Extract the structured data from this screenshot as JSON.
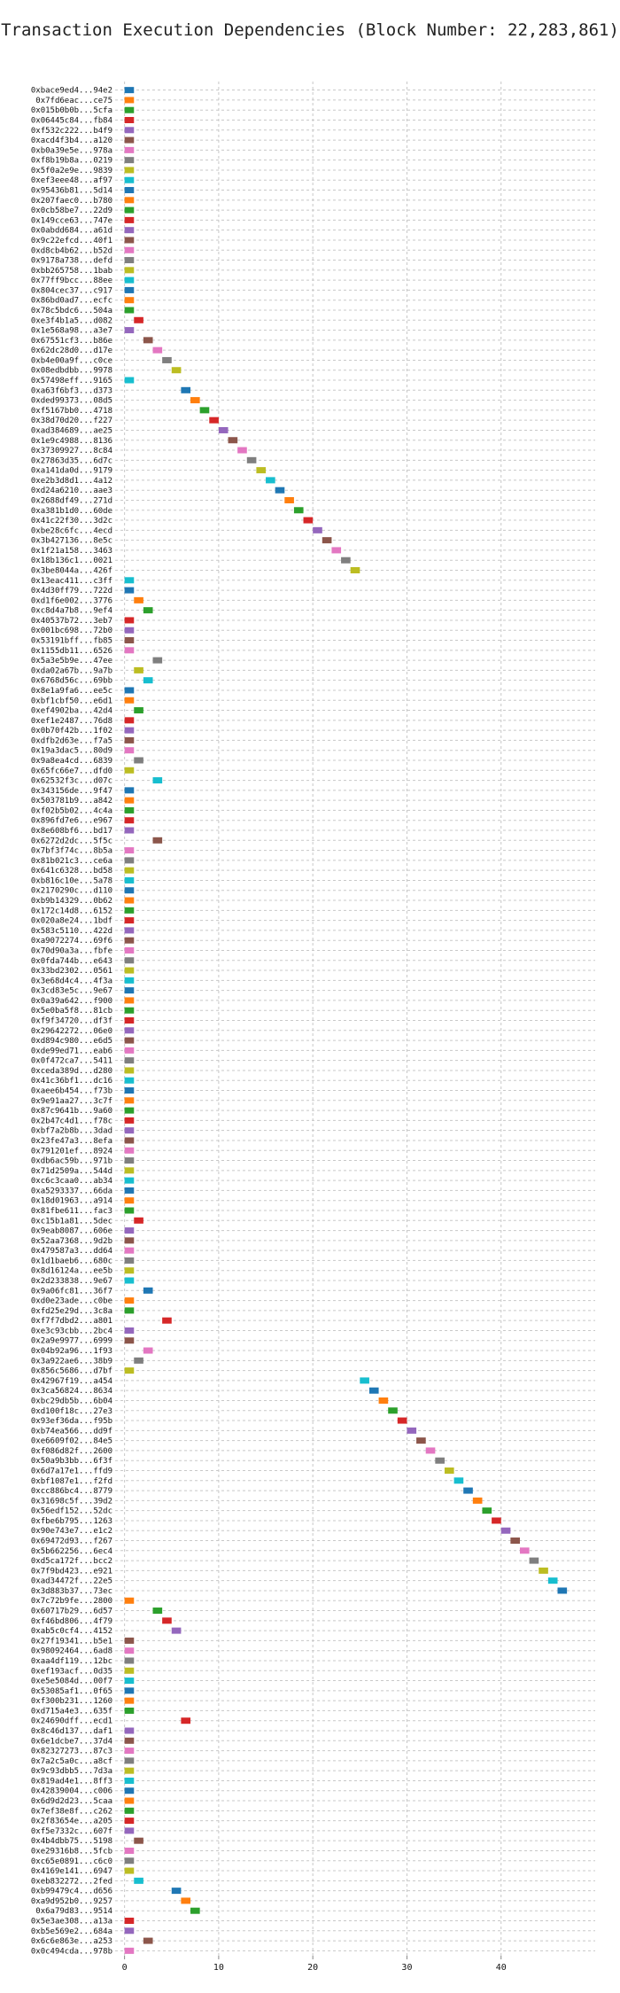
{
  "chart_data": {
    "type": "bar",
    "orientation": "horizontal",
    "title": "Transaction Execution Dependencies (Block Number: 22,283,861)",
    "xlabel": "",
    "ylabel": "",
    "xlim": [
      -1,
      50
    ],
    "xticks": [
      0,
      10,
      20,
      30,
      40
    ],
    "grid": true,
    "bar_width": 1,
    "palette": [
      "#1f77b4",
      "#ff7f0e",
      "#2ca02c",
      "#d62728",
      "#9467bd",
      "#8c564b",
      "#e377c2",
      "#7f7f7f",
      "#bcbd22",
      "#17becf"
    ],
    "transactions": [
      {
        "label": "0xbace9ed4...94e2",
        "start": 0
      },
      {
        "label": "0x7fd6eac...ce75",
        "start": 0
      },
      {
        "label": "0x015b0b0b...5cfa",
        "start": 0
      },
      {
        "label": "0x06445c84...fb84",
        "start": 0
      },
      {
        "label": "0xf532c222...b4f9",
        "start": 0
      },
      {
        "label": "0xacd4f3b4...a120",
        "start": 0
      },
      {
        "label": "0xb0a39e5e...978a",
        "start": 0
      },
      {
        "label": "0xf8b19b8a...0219",
        "start": 0
      },
      {
        "label": "0x5f0a2e9e...9839",
        "start": 0
      },
      {
        "label": "0xef3eee48...af97",
        "start": 0
      },
      {
        "label": "0x95436b81...5d14",
        "start": 0
      },
      {
        "label": "0x207faec0...b780",
        "start": 0
      },
      {
        "label": "0x0cb58be7...22d9",
        "start": 0
      },
      {
        "label": "0x149cce63...747e",
        "start": 0
      },
      {
        "label": "0x0abdd684...a61d",
        "start": 0
      },
      {
        "label": "0x9c22efcd...40f1",
        "start": 0
      },
      {
        "label": "0xd8cb4b62...b52d",
        "start": 0
      },
      {
        "label": "0x9178a738...defd",
        "start": 0
      },
      {
        "label": "0xbb265758...1bab",
        "start": 0
      },
      {
        "label": "0x77ff9bcc...88ee",
        "start": 0
      },
      {
        "label": "0x804cec37...c917",
        "start": 0
      },
      {
        "label": "0x86bd0ad7...ecfc",
        "start": 0
      },
      {
        "label": "0x78c5bdc6...504a",
        "start": 0
      },
      {
        "label": "0xe3f4b1a5...d082",
        "start": 1
      },
      {
        "label": "0x1e568a98...a3e7",
        "start": 0
      },
      {
        "label": "0x67551cf3...b86e",
        "start": 2
      },
      {
        "label": "0x62dc28d0...d17e",
        "start": 3
      },
      {
        "label": "0xb4e00a9f...c0ce",
        "start": 4
      },
      {
        "label": "0x08edbdbb...9978",
        "start": 5
      },
      {
        "label": "0x57498eff...9165",
        "start": 0
      },
      {
        "label": "0xa63f6bf3...d373",
        "start": 6
      },
      {
        "label": "0xded99373...08d5",
        "start": 7
      },
      {
        "label": "0xf5167bb0...4718",
        "start": 8
      },
      {
        "label": "0x38d70d20...f227",
        "start": 9
      },
      {
        "label": "0xad384689...ae25",
        "start": 10
      },
      {
        "label": "0x1e9c4988...8136",
        "start": 11
      },
      {
        "label": "0x37309927...8c84",
        "start": 12
      },
      {
        "label": "0x27863d35...6d7c",
        "start": 13
      },
      {
        "label": "0xa141da0d...9179",
        "start": 14
      },
      {
        "label": "0xe2b3d8d1...4a12",
        "start": 15
      },
      {
        "label": "0xd24a6210...aae3",
        "start": 16
      },
      {
        "label": "0x2688df49...271d",
        "start": 17
      },
      {
        "label": "0xa381b1d0...60de",
        "start": 18
      },
      {
        "label": "0x41c22f30...3d2c",
        "start": 19
      },
      {
        "label": "0xbe28c6fc...4ecd",
        "start": 20
      },
      {
        "label": "0x3b427136...8e5c",
        "start": 21
      },
      {
        "label": "0x1f21a158...3463",
        "start": 22
      },
      {
        "label": "0x18b136c1...0021",
        "start": 23
      },
      {
        "label": "0x3be8044a...426f",
        "start": 24
      },
      {
        "label": "0x13eac411...c3ff",
        "start": 0
      },
      {
        "label": "0x4d30ff79...722d",
        "start": 0
      },
      {
        "label": "0xd1f6e002...3776",
        "start": 1
      },
      {
        "label": "0xc8d4a7b8...9ef4",
        "start": 2
      },
      {
        "label": "0x40537b72...3eb7",
        "start": 0
      },
      {
        "label": "0x001bc698...72b0",
        "start": 0
      },
      {
        "label": "0x53191bff...fb85",
        "start": 0
      },
      {
        "label": "0x1155db11...6526",
        "start": 0
      },
      {
        "label": "0x5a3e5b9e...47ee",
        "start": 3
      },
      {
        "label": "0xda02a67b...9a7b",
        "start": 1
      },
      {
        "label": "0x6768d56c...69bb",
        "start": 2
      },
      {
        "label": "0x8e1a9fa6...ee5c",
        "start": 0
      },
      {
        "label": "0xbf1cbf50...e6d1",
        "start": 0
      },
      {
        "label": "0xef4902ba...42d4",
        "start": 1
      },
      {
        "label": "0xef1e2487...76d8",
        "start": 0
      },
      {
        "label": "0x0b70f42b...1f02",
        "start": 0
      },
      {
        "label": "0xdfb2d63e...f7a5",
        "start": 0
      },
      {
        "label": "0x19a3dac5...80d9",
        "start": 0
      },
      {
        "label": "0x9a8ea4cd...6839",
        "start": 1
      },
      {
        "label": "0x65fc66e7...dfd0",
        "start": 0
      },
      {
        "label": "0x62532f3c...d07c",
        "start": 3
      },
      {
        "label": "0x343156de...9f47",
        "start": 0
      },
      {
        "label": "0x503781b9...a842",
        "start": 0
      },
      {
        "label": "0xf02b5b02...4c4a",
        "start": 0
      },
      {
        "label": "0x896fd7e6...e967",
        "start": 0
      },
      {
        "label": "0x8e608bf6...bd17",
        "start": 0
      },
      {
        "label": "0x6272d2dc...5f5c",
        "start": 3
      },
      {
        "label": "0x7bf3f74c...8b5a",
        "start": 0
      },
      {
        "label": "0x81b021c3...ce6a",
        "start": 0
      },
      {
        "label": "0x641c6328...bd58",
        "start": 0
      },
      {
        "label": "0xb816c10e...5a78",
        "start": 0
      },
      {
        "label": "0x2170290c...d110",
        "start": 0
      },
      {
        "label": "0xb9b14329...0b62",
        "start": 0
      },
      {
        "label": "0x172c14d8...6152",
        "start": 0
      },
      {
        "label": "0x020a8e24...1bdf",
        "start": 0
      },
      {
        "label": "0x583c5110...422d",
        "start": 0
      },
      {
        "label": "0xa9072274...69f6",
        "start": 0
      },
      {
        "label": "0x70d90a3a...fbfe",
        "start": 0
      },
      {
        "label": "0x0fda744b...e643",
        "start": 0
      },
      {
        "label": "0x33bd2302...0561",
        "start": 0
      },
      {
        "label": "0x3e68d4c4...4f3a",
        "start": 0
      },
      {
        "label": "0x3cd83e5c...9e67",
        "start": 0
      },
      {
        "label": "0x0a39a642...f900",
        "start": 0
      },
      {
        "label": "0x5e0ba5f8...81cb",
        "start": 0
      },
      {
        "label": "0xf9f34720...df3f",
        "start": 0
      },
      {
        "label": "0x29642272...06e0",
        "start": 0
      },
      {
        "label": "0xd894c980...e6d5",
        "start": 0
      },
      {
        "label": "0xde99ed71...eab6",
        "start": 0
      },
      {
        "label": "0x0f472ca7...5411",
        "start": 0
      },
      {
        "label": "0xceda389d...d280",
        "start": 0
      },
      {
        "label": "0x41c36bf1...dc16",
        "start": 0
      },
      {
        "label": "0xaee6b454...f73b",
        "start": 0
      },
      {
        "label": "0x9e91aa27...3c7f",
        "start": 0
      },
      {
        "label": "0x87c9641b...9a60",
        "start": 0
      },
      {
        "label": "0x2b47c4d1...f78c",
        "start": 0
      },
      {
        "label": "0xbf7a2b8b...3dad",
        "start": 0
      },
      {
        "label": "0x23fe47a3...8efa",
        "start": 0
      },
      {
        "label": "0x791201ef...8924",
        "start": 0
      },
      {
        "label": "0xdb6ac59b...971b",
        "start": 0
      },
      {
        "label": "0x71d2509a...544d",
        "start": 0
      },
      {
        "label": "0xc6c3caa0...ab34",
        "start": 0
      },
      {
        "label": "0xa5293337...66da",
        "start": 0
      },
      {
        "label": "0x18d01963...a914",
        "start": 0
      },
      {
        "label": "0x81fbe611...fac3",
        "start": 0
      },
      {
        "label": "0xc15b1a81...5dec",
        "start": 1
      },
      {
        "label": "0x9eab8087...606e",
        "start": 0
      },
      {
        "label": "0x52aa7368...9d2b",
        "start": 0
      },
      {
        "label": "0x479587a3...dd64",
        "start": 0
      },
      {
        "label": "0x1d1baeb6...680c",
        "start": 0
      },
      {
        "label": "0x8d16124a...ee5b",
        "start": 0
      },
      {
        "label": "0x2d233838...9e67",
        "start": 0
      },
      {
        "label": "0x9a06fc81...36f7",
        "start": 2
      },
      {
        "label": "0xd0e23ade...c0be",
        "start": 0
      },
      {
        "label": "0xfd25e29d...3c8a",
        "start": 0
      },
      {
        "label": "0xf7f7dbd2...a801",
        "start": 4
      },
      {
        "label": "0xe3c93cbb...2bc4",
        "start": 0
      },
      {
        "label": "0x2a9e9977...6999",
        "start": 0
      },
      {
        "label": "0x04b92a96...1f93",
        "start": 2
      },
      {
        "label": "0x3a922ae6...38b9",
        "start": 1
      },
      {
        "label": "0x856c5686...d7bf",
        "start": 0
      },
      {
        "label": "0x42967f19...a454",
        "start": 25
      },
      {
        "label": "0x3ca56824...8634",
        "start": 26
      },
      {
        "label": "0xbc29db5b...6b04",
        "start": 27
      },
      {
        "label": "0xd100f18c...27e3",
        "start": 28
      },
      {
        "label": "0x93ef36da...f95b",
        "start": 29
      },
      {
        "label": "0xb74ea566...dd9f",
        "start": 30
      },
      {
        "label": "0xe6609f02...84e5",
        "start": 31
      },
      {
        "label": "0xf086d82f...2600",
        "start": 32
      },
      {
        "label": "0x50a9b3bb...6f3f",
        "start": 33
      },
      {
        "label": "0x6d7a17e1...ffd9",
        "start": 34
      },
      {
        "label": "0xbf1087e1...f2fd",
        "start": 35
      },
      {
        "label": "0xcc886bc4...8779",
        "start": 36
      },
      {
        "label": "0x31698c5f...39d2",
        "start": 37
      },
      {
        "label": "0x56edf152...52dc",
        "start": 38
      },
      {
        "label": "0xfbe6b795...1263",
        "start": 39
      },
      {
        "label": "0x90e743e7...e1c2",
        "start": 40
      },
      {
        "label": "0x69472d93...f267",
        "start": 41
      },
      {
        "label": "0x5b662256...6ec4",
        "start": 42
      },
      {
        "label": "0xd5ca172f...bcc2",
        "start": 43
      },
      {
        "label": "0x7f9bd423...e921",
        "start": 44
      },
      {
        "label": "0xad34472f...22e5",
        "start": 45
      },
      {
        "label": "0x3d883b37...73ec",
        "start": 46
      },
      {
        "label": "0x7c72b9fe...2800",
        "start": 0
      },
      {
        "label": "0x60717b29...6d57",
        "start": 3
      },
      {
        "label": "0xf46bd806...4f79",
        "start": 4
      },
      {
        "label": "0xab5c0cf4...4152",
        "start": 5
      },
      {
        "label": "0x27f19341...b5e1",
        "start": 0
      },
      {
        "label": "0x98092464...6ad8",
        "start": 0
      },
      {
        "label": "0xaa4df119...12bc",
        "start": 0
      },
      {
        "label": "0xef193acf...0d35",
        "start": 0
      },
      {
        "label": "0xe5e5084d...00f7",
        "start": 0
      },
      {
        "label": "0x53085af1...0f65",
        "start": 0
      },
      {
        "label": "0xf300b231...1260",
        "start": 0
      },
      {
        "label": "0xd715a4e3...635f",
        "start": 0
      },
      {
        "label": "0x24690dff...ecd1",
        "start": 6
      },
      {
        "label": "0x8c46d137...daf1",
        "start": 0
      },
      {
        "label": "0x6e1dcbe7...37d4",
        "start": 0
      },
      {
        "label": "0x82327273...87c3",
        "start": 0
      },
      {
        "label": "0x7a2c5a0c...a8cf",
        "start": 0
      },
      {
        "label": "0x9c93dbb5...7d3a",
        "start": 0
      },
      {
        "label": "0x819ad4e1...8ff3",
        "start": 0
      },
      {
        "label": "0x42839004...c006",
        "start": 0
      },
      {
        "label": "0x6d9d2d23...5caa",
        "start": 0
      },
      {
        "label": "0x7ef38e8f...c262",
        "start": 0
      },
      {
        "label": "0x2f83654e...a205",
        "start": 0
      },
      {
        "label": "0xf5e7332c...607f",
        "start": 0
      },
      {
        "label": "0x4b4dbb75...5198",
        "start": 1
      },
      {
        "label": "0xe29316b8...5fcb",
        "start": 0
      },
      {
        "label": "0xc65e0891...c6c0",
        "start": 0
      },
      {
        "label": "0x4169e141...6947",
        "start": 0
      },
      {
        "label": "0xeb832272...2fed",
        "start": 1
      },
      {
        "label": "0xb99479c4...d656",
        "start": 5
      },
      {
        "label": "0xa9d952b0...9257",
        "start": 6
      },
      {
        "label": "0x6a79d83...9514",
        "start": 7
      },
      {
        "label": "0x5e3ae308...a13a",
        "start": 0
      },
      {
        "label": "0xb5e569e2...684a",
        "start": 0
      },
      {
        "label": "0x6c6e863e...a253",
        "start": 2
      },
      {
        "label": "0x0c494cda...978b",
        "start": 0
      }
    ]
  }
}
